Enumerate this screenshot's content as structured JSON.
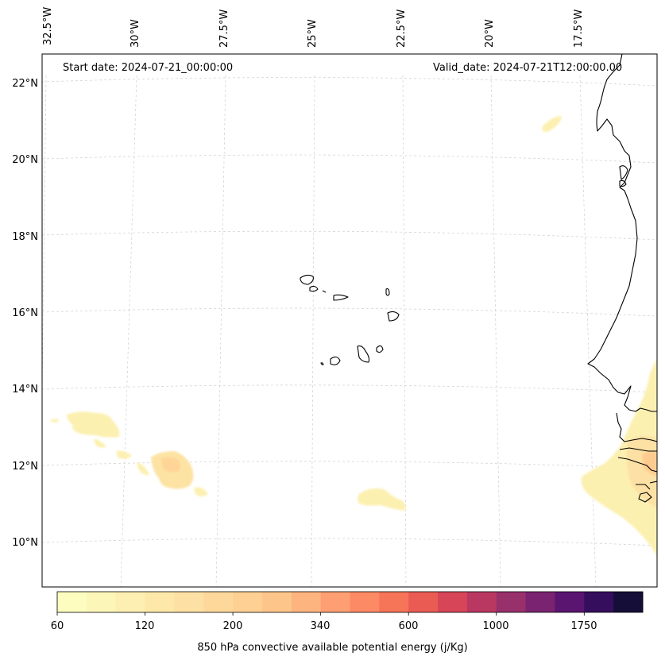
{
  "map": {
    "start_date": "Start date: 2024-07-21_00:00:00",
    "valid_date": "Valid_date: 2024-07-21T12:00:00.00",
    "lon_labels": [
      "32.5°W",
      "30°W",
      "27.5°W",
      "25°W",
      "22.5°W",
      "20°W",
      "17.5°W"
    ],
    "lat_labels": [
      "22°N",
      "20°N",
      "18°N",
      "16°N",
      "14°N",
      "12°N",
      "10°N"
    ],
    "gridlines": true,
    "features": [
      "west-african-coastline",
      "cape-verde-islands"
    ]
  },
  "colorbar": {
    "label": "850 hPa convective available potential energy (j/Kg)",
    "tick_labels": [
      "60",
      "120",
      "200",
      "340",
      "600",
      "1000",
      "1750"
    ],
    "colors": [
      "#fcfdbf",
      "#fcf6b8",
      "#fcefb1",
      "#fde8aa",
      "#fde0a3",
      "#fed89b",
      "#fed093",
      "#fec58a",
      "#feb47f",
      "#fd9f72",
      "#fc8a64",
      "#f67457",
      "#ea5c53",
      "#d64658",
      "#b93861",
      "#98306b",
      "#7a2370",
      "#5a1571",
      "#360e5e",
      "#150e38"
    ]
  }
}
